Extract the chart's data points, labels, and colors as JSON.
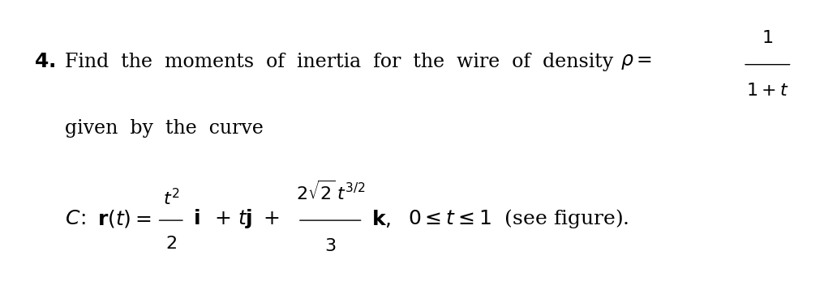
{
  "background_color": "#ffffff",
  "fig_width": 10.16,
  "fig_height": 3.68,
  "dpi": 100,
  "main_fontsize": 17,
  "eq_fontsize": 18,
  "bold_fontsize": 18
}
